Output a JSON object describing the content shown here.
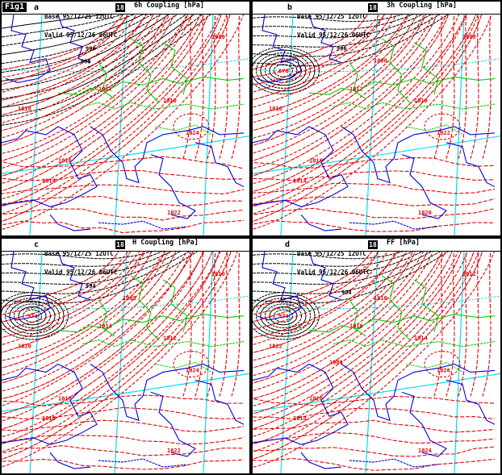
{
  "figure": {
    "badge": "Fig1",
    "colors": {
      "background": "#ffffff",
      "frame": "#000000",
      "isobar_low": "#000000",
      "isobar_high": "#e00000",
      "coastline": "#0000e0",
      "border": "#00d000",
      "graticule": "#00e0f0"
    }
  },
  "panels": [
    {
      "id": "a",
      "letter": "a",
      "base_line": "Base 95/12/25 12UTC",
      "valid_line": "Valid 95/12/26 06UTC",
      "step": "18",
      "field": "6h Coupling [hPa]",
      "low_center": null,
      "labels": [
        "1024",
        "1022",
        "1018",
        "1016",
        "1014",
        "1012",
        "1010",
        "1000",
        "998",
        "996"
      ]
    },
    {
      "id": "b",
      "letter": "b",
      "base_line": "Base 95/12/25 12UTC",
      "valid_line": "Valid 95/12/26 06UTC",
      "step": "18",
      "field": "3h Coupling [hPa]",
      "low_center": "976",
      "labels": [
        "1022",
        "1020",
        "1018",
        "1016",
        "1014",
        "1012",
        "1010",
        "1008",
        "1000",
        "996",
        "976"
      ]
    },
    {
      "id": "c",
      "letter": "c",
      "base_line": "Base 95/12/25 12UTC",
      "valid_line": "Valid 95/12/26 06UTC",
      "step": "18",
      "field": "H Coupling [hPa]",
      "low_center": "974",
      "labels": [
        "1024",
        "1022",
        "1020",
        "1018",
        "1016",
        "1014",
        "1012",
        "1010",
        "1008",
        "994",
        "974"
      ]
    },
    {
      "id": "d",
      "letter": "d",
      "base_line": "Base 95/12/25 12UTC",
      "valid_line": "Valid 95/12/26 06UTC",
      "step": "18",
      "field": "FF [hPa]",
      "low_center": "974",
      "labels": [
        "1026",
        "1024",
        "1022",
        "1020",
        "1018",
        "1016",
        "1014",
        "1012",
        "1010",
        "1008",
        "994",
        "974"
      ]
    }
  ]
}
